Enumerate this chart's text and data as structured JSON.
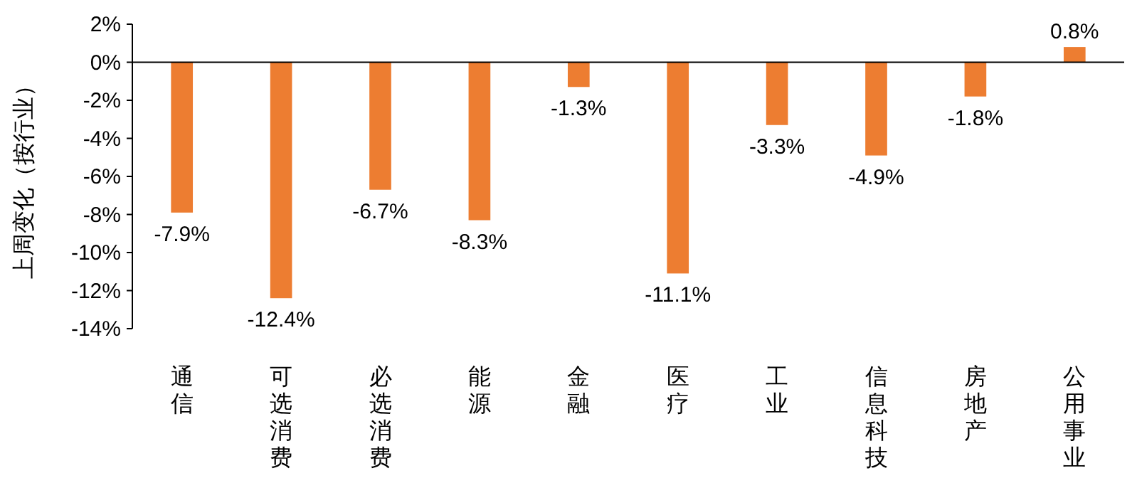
{
  "chart_data": {
    "type": "bar",
    "ylabel": "上周变化（按行业）",
    "categories": [
      "通信",
      "可选消费",
      "必选消费",
      "能源",
      "金融",
      "医疗",
      "工业",
      "信息科技",
      "房地产",
      "公用事业"
    ],
    "values": [
      -7.9,
      -12.4,
      -6.7,
      -8.3,
      -1.3,
      -11.1,
      -3.3,
      -4.9,
      -1.8,
      0.8
    ],
    "value_labels": [
      "-7.9%",
      "-12.4%",
      "-6.7%",
      "-8.3%",
      "-1.3%",
      "-11.1%",
      "-3.3%",
      "-4.9%",
      "-1.8%",
      "0.8%"
    ],
    "color": "#ed7d31",
    "ylim": [
      -14,
      2
    ],
    "yticks": [
      {
        "value": 2,
        "label": "2%"
      },
      {
        "value": 0,
        "label": "0%"
      },
      {
        "value": -2,
        "label": "-2%"
      },
      {
        "value": -4,
        "label": "-4%"
      },
      {
        "value": -6,
        "label": "-6%"
      },
      {
        "value": -8,
        "label": "-8%"
      },
      {
        "value": -10,
        "label": "-10%"
      },
      {
        "value": -12,
        "label": "-12%"
      },
      {
        "value": -14,
        "label": "-14%"
      }
    ]
  }
}
